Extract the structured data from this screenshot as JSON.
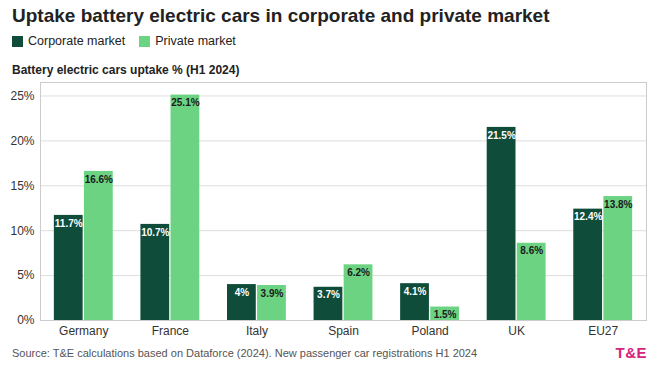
{
  "chart_data": {
    "type": "bar",
    "title": "Uptake battery electric cars in corporate and private market",
    "subtitle": "Battery electric cars uptake % (H1 2024)",
    "caption": "Source: T&E calculations based on Dataforce (2024). New passenger car registrations H1 2024",
    "logo": "T&E",
    "categories": [
      "Germany",
      "France",
      "Italy",
      "Spain",
      "Poland",
      "UK",
      "EU27"
    ],
    "series": [
      {
        "name": "Corporate market",
        "color": "#0f4c3a",
        "values": [
          11.7,
          10.7,
          4,
          3.7,
          4.1,
          21.5,
          12.4
        ],
        "value_labels": [
          "11.7%",
          "10.7%",
          "4%",
          "3.7%",
          "4.1%",
          "21.5%",
          "12.4%"
        ]
      },
      {
        "name": "Private market",
        "color": "#6bd382",
        "values": [
          16.6,
          25.1,
          3.9,
          6.2,
          1.5,
          8.6,
          13.8
        ],
        "value_labels": [
          "16.6%",
          "25.1%",
          "3.9%",
          "6.2%",
          "1.5%",
          "8.6%",
          "13.8%"
        ]
      }
    ],
    "ylim": [
      0,
      26.5
    ],
    "yticks": [
      {
        "value": 0,
        "label": "0%"
      },
      {
        "value": 5,
        "label": "5%"
      },
      {
        "value": 10,
        "label": "10%"
      },
      {
        "value": 15,
        "label": "15%"
      },
      {
        "value": 20,
        "label": "20%"
      },
      {
        "value": 25,
        "label": "25%"
      }
    ],
    "grid": true,
    "legend": "top",
    "data_labels": true
  }
}
